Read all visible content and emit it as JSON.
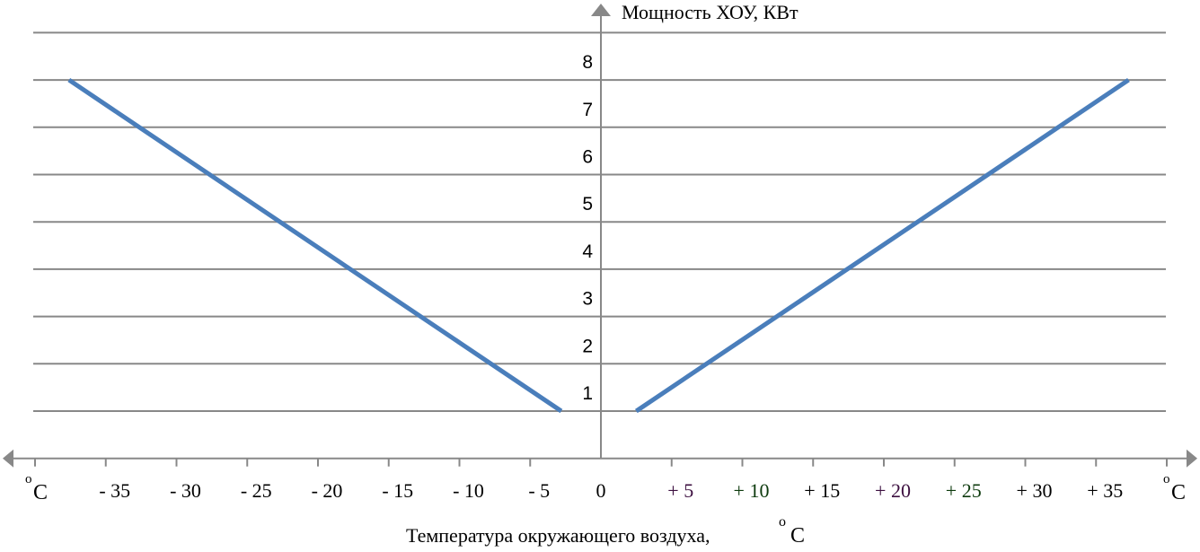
{
  "chart_data": {
    "type": "line",
    "ylabel": "Мощность ХОУ, КВт",
    "xlabel": "Температура окружающего воздуха,",
    "xlabel_unit_deg": "o",
    "xlabel_unit": "C",
    "x_unit_deg": "o",
    "x_unit": "C",
    "xlim": [
      -40,
      40
    ],
    "ylim": [
      0,
      9
    ],
    "grid": true,
    "x_ticks": [
      -35,
      -30,
      -25,
      -20,
      -15,
      -10,
      -5,
      0,
      5,
      10,
      15,
      20,
      25,
      30,
      35
    ],
    "x_tick_labels": [
      "- 35",
      "- 30",
      "- 25",
      "- 20",
      "- 15",
      "- 10",
      "- 5",
      "0",
      "+ 5",
      "+ 10",
      "+ 15",
      "+ 20",
      "+ 25",
      "+ 30",
      "+ 35"
    ],
    "y_ticks": [
      1,
      2,
      3,
      4,
      5,
      6,
      7,
      8
    ],
    "y_tick_labels": [
      "1",
      "2",
      "3",
      "4",
      "5",
      "6",
      "7",
      "8"
    ],
    "series": [
      {
        "x": [
          -37.6,
          -2.8
        ],
        "y": [
          8,
          1
        ]
      },
      {
        "x": [
          2.5,
          37.3
        ],
        "y": [
          1,
          8
        ]
      }
    ],
    "colors": {
      "line": "#4a7ebb",
      "axis": "#888888",
      "grid": "#888888"
    }
  }
}
